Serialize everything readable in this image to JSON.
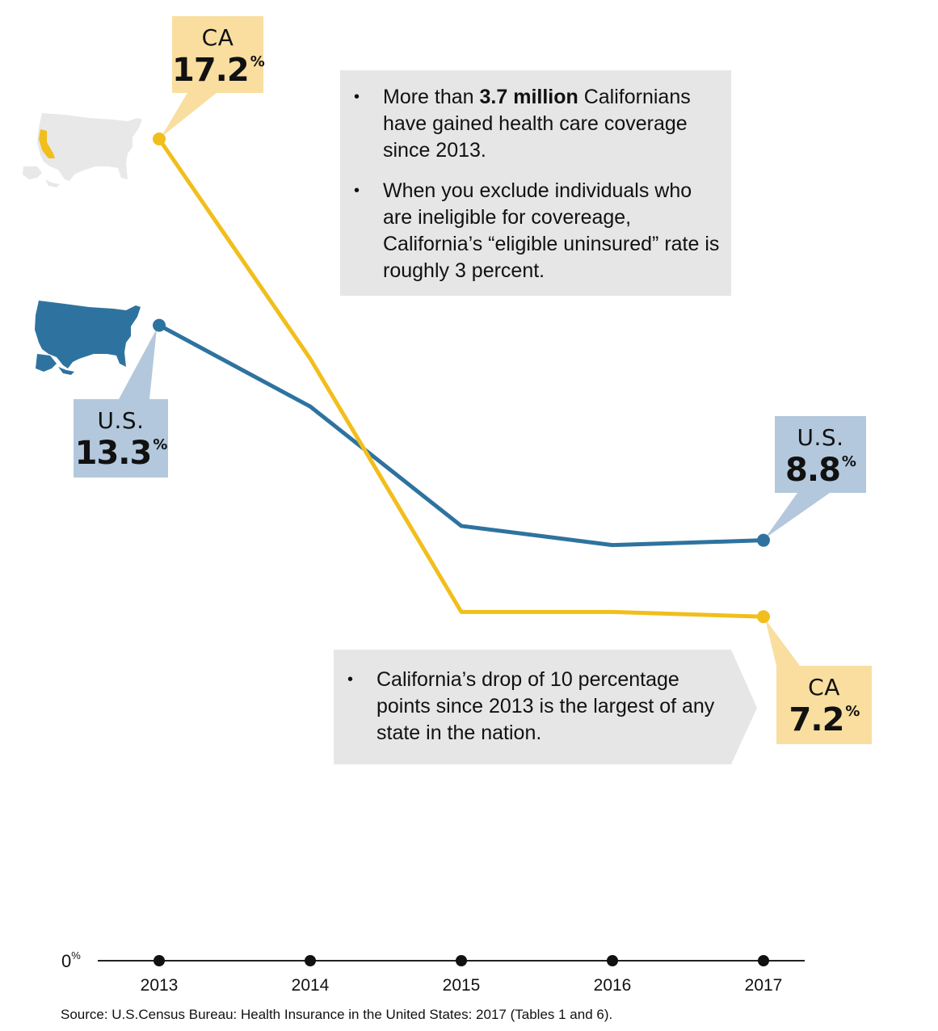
{
  "chart_data": {
    "type": "line",
    "x": [
      "2013",
      "2014",
      "2015",
      "2016",
      "2017"
    ],
    "series": [
      {
        "name": "CA",
        "values": [
          17.2,
          12.6,
          7.3,
          7.3,
          7.2
        ],
        "color": "#f1be1c"
      },
      {
        "name": "U.S.",
        "values": [
          13.3,
          11.6,
          9.1,
          8.7,
          8.8
        ],
        "color": "#2e739f"
      }
    ],
    "ylim": [
      0,
      20
    ],
    "zero_label": "0",
    "zero_unit": "%",
    "source": "Source: U.S.Census Bureau: Health Insurance in the United States: 2017 (Tables 1 and 6)."
  },
  "callouts": {
    "ca_start": {
      "name": "CA",
      "value": "17.2",
      "unit": "%"
    },
    "us_start": {
      "name": "U.S.",
      "value": "13.3",
      "unit": "%"
    },
    "us_end": {
      "name": "U.S.",
      "value": "8.8",
      "unit": "%"
    },
    "ca_end": {
      "name": "CA",
      "value": "7.2",
      "unit": "%"
    }
  },
  "notes": {
    "top": {
      "bullet": "•",
      "item1_pre": "More than ",
      "item1_bold": "3.7 million",
      "item1_post": " Californians have gained health care coverage since 2013.",
      "item2": "When you exclude individuals who are ineligible for covereage, California’s “eligible uninsured” rate is roughly 3 percent."
    },
    "bottom": {
      "bullet": "•",
      "item1": "California’s drop of 10 percentage points since 2013 is the largest of any state in the nation."
    }
  },
  "colors": {
    "ca": "#f1be1c",
    "us": "#2e739f",
    "ca_box": "#f9dea0",
    "us_box": "#b3c8dd",
    "note_box": "#e6e6e7",
    "map_light": "#e8e8e8"
  },
  "icons": [
    "us-map-california-highlight-icon",
    "us-map-icon"
  ]
}
